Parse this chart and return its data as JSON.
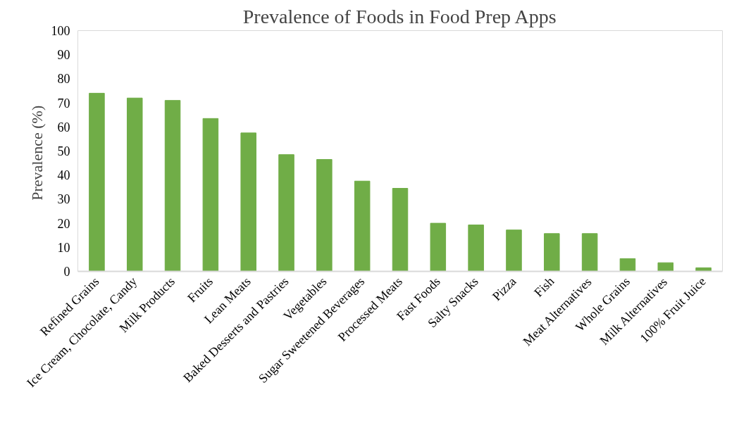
{
  "chart_data": {
    "type": "bar",
    "title": "Prevalence of Foods in Food Prep Apps",
    "ylabel": "Prevalence  (%)",
    "categories": [
      "Refined Grains",
      "Ice Cream, Chocolate, Candy",
      "Milk Products",
      "Fruits",
      "Lean Meats",
      "Baked Desserts and Pastries",
      "Vegetables",
      "Sugar Sweetened Beverages",
      "Processed Meats",
      "Fast Foods",
      "Salty Snacks",
      "Pizza",
      "Fish",
      "Meat Alternatives",
      "Whole Grains",
      "Milk Alternatives",
      "100% Fruit Juice"
    ],
    "values": [
      74,
      72,
      71,
      63.5,
      57.5,
      48.5,
      46.5,
      37.5,
      34.5,
      20,
      19.3,
      17.2,
      15.7,
      15.7,
      5.3,
      3.6,
      1.5
    ],
    "color": "#70ad47",
    "ylim": [
      0,
      100
    ],
    "yticks": [
      0,
      10,
      20,
      30,
      40,
      50,
      60,
      70,
      80,
      90,
      100
    ],
    "grid": false
  }
}
